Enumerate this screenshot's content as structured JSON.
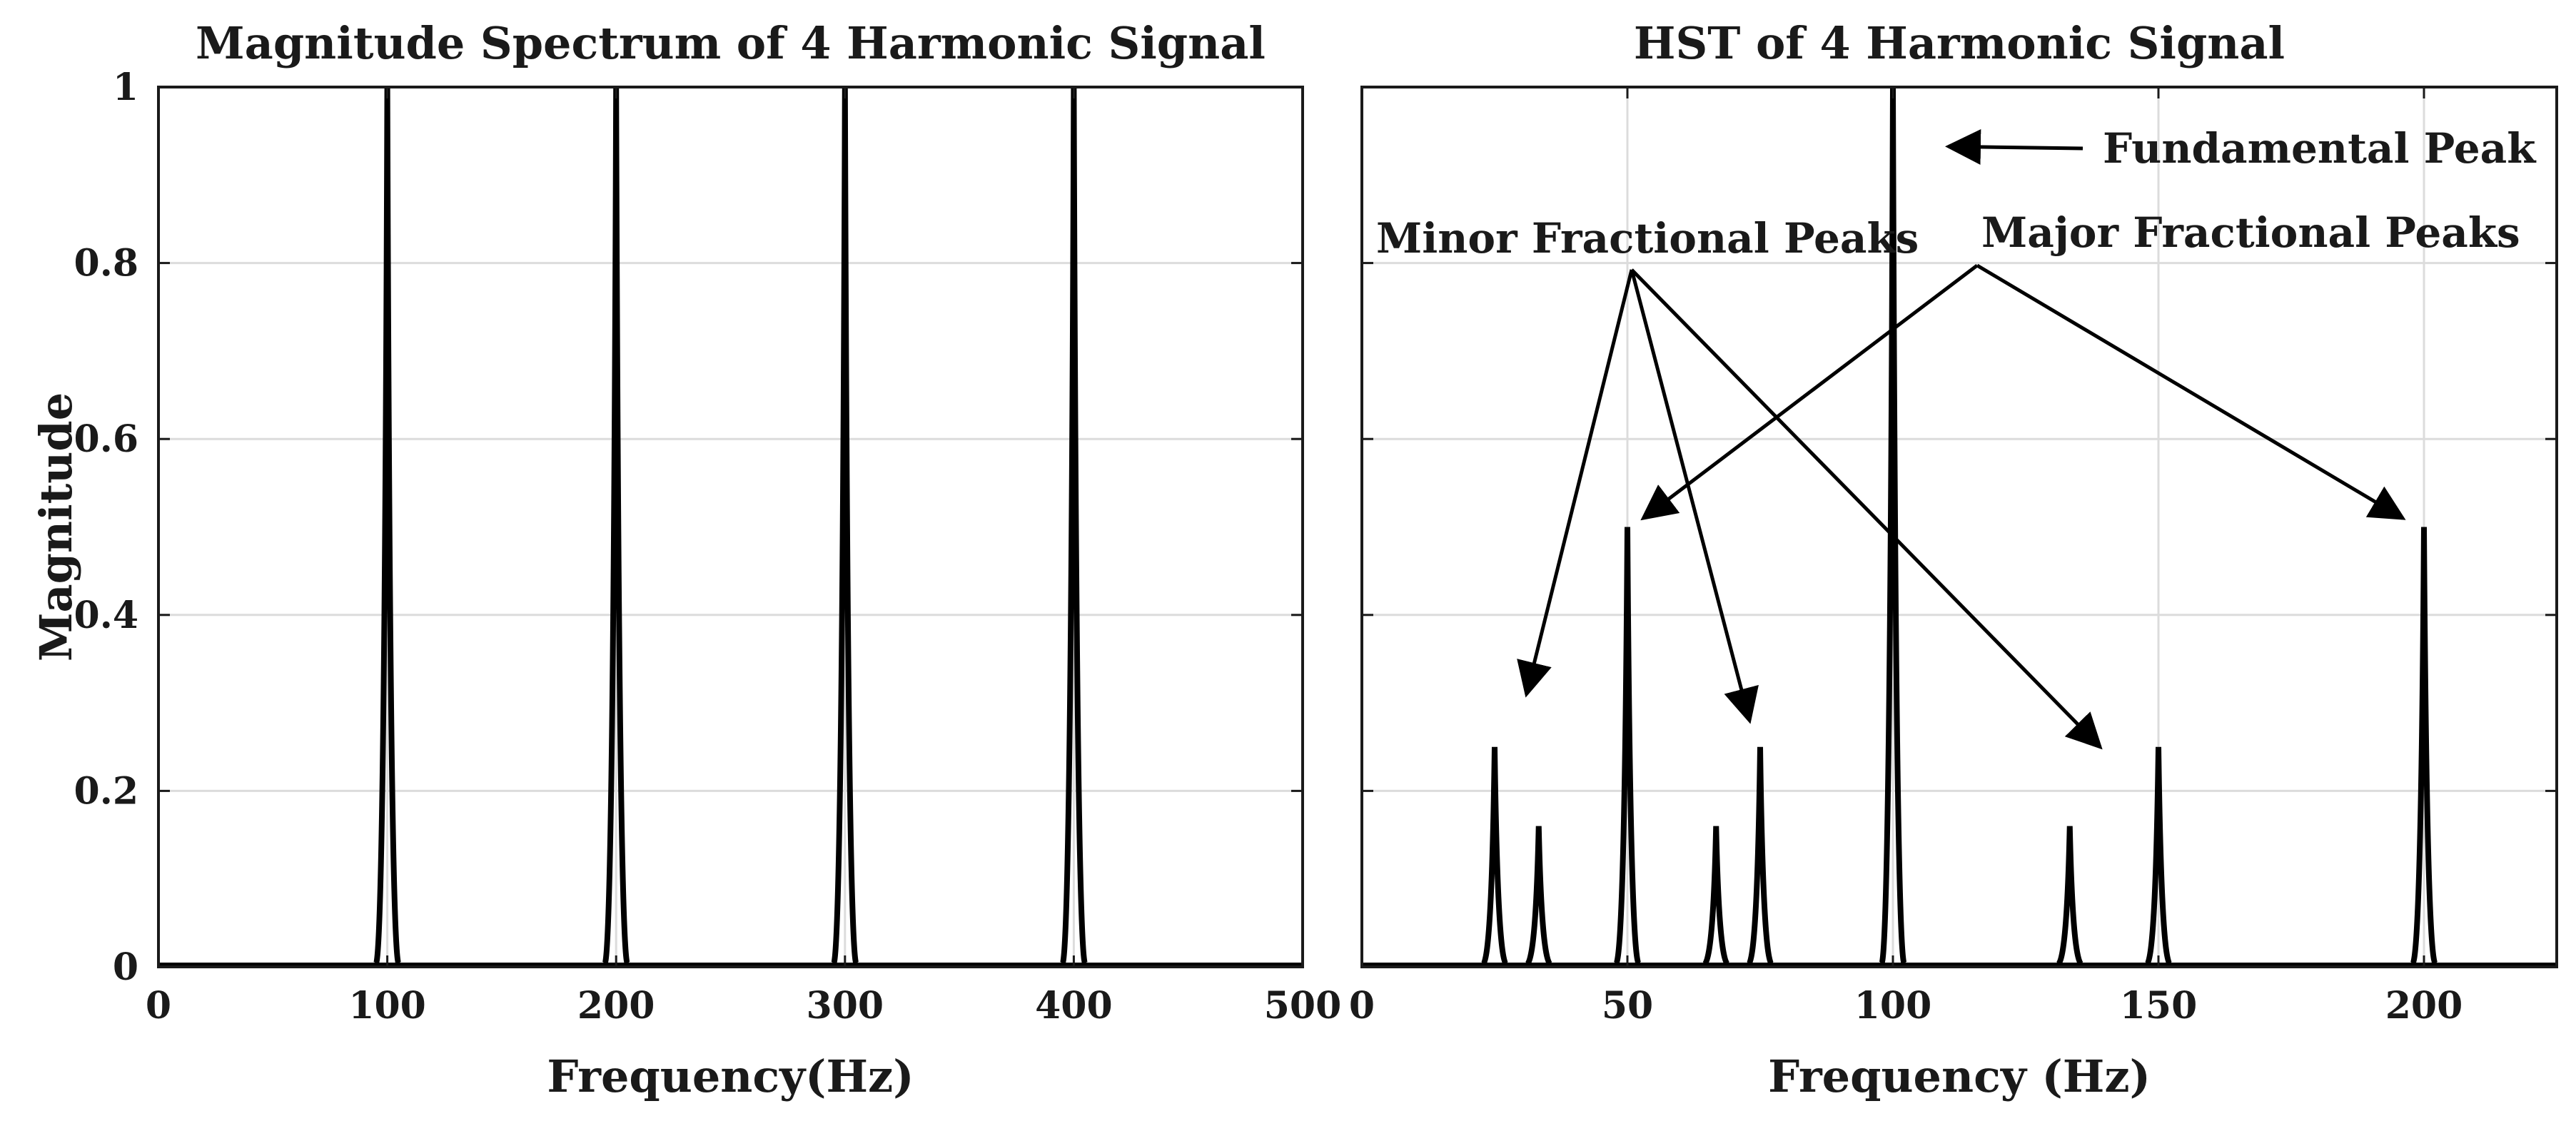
{
  "chart_data": [
    {
      "type": "line",
      "title": "Magnitude Spectrum of 4 Harmonic Signal",
      "xlabel": "Frequency(Hz)",
      "ylabel": "Magnitude",
      "xlim": [
        0,
        500
      ],
      "ylim": [
        0,
        1
      ],
      "xticks": [
        0,
        100,
        200,
        300,
        400,
        500
      ],
      "xtick_labels": [
        "0",
        "100",
        "200",
        "300",
        "400",
        "500"
      ],
      "yticks": [
        0,
        0.2,
        0.4,
        0.6,
        0.8,
        1
      ],
      "ytick_labels": [
        "0",
        "0.2",
        "0.4",
        "0.6",
        "0.8",
        "1"
      ],
      "grid": true,
      "series": [
        {
          "x": [
            100,
            200,
            300,
            400
          ],
          "values": [
            1,
            1,
            1,
            1
          ]
        }
      ],
      "color": "#000000",
      "annotations": []
    },
    {
      "type": "line",
      "title": "HST of 4 Harmonic Signal",
      "xlabel": "Frequency (Hz)",
      "ylabel": "",
      "xlim": [
        0,
        225
      ],
      "ylim": [
        0,
        1
      ],
      "xticks": [
        0,
        50,
        100,
        150,
        200
      ],
      "xtick_labels": [
        "0",
        "50",
        "100",
        "150",
        "200"
      ],
      "yticks": [
        0,
        0.2,
        0.4,
        0.6,
        0.8,
        1
      ],
      "ytick_labels": [],
      "grid": true,
      "series": [
        {
          "x": [
            25,
            33.3,
            50,
            66.7,
            75,
            100,
            133.3,
            150,
            200
          ],
          "values": [
            0.25,
            0.16,
            0.5,
            0.16,
            0.25,
            1.0,
            0.16,
            0.25,
            0.5
          ]
        }
      ],
      "color": "#000000",
      "annotations": [
        {
          "text": "Fundamental Peak",
          "target": [
            100,
            0.93
          ]
        },
        {
          "text": "Minor Fractional Peaks",
          "targets": [
            [
              31,
              0.31
            ],
            [
              73,
              0.28
            ],
            [
              139,
              0.25
            ]
          ]
        },
        {
          "text": "Major Fractional Peaks",
          "targets": [
            [
              53,
              0.51
            ],
            [
              196,
              0.51
            ]
          ]
        }
      ]
    }
  ]
}
